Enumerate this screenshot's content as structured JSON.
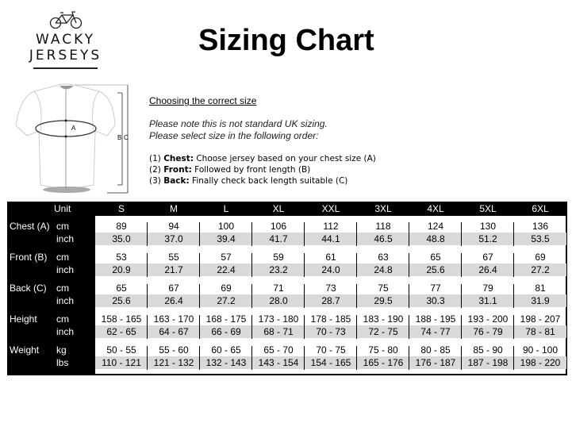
{
  "logo": {
    "line1": "WACKY",
    "line2": "JERSEYS"
  },
  "title": "Sizing Chart",
  "instructions": {
    "heading": "Choosing the correct size",
    "note1": "Please note this is not standard UK sizing.",
    "note2": "Please select size in the following order:",
    "steps": [
      {
        "num": "(1)",
        "bold": "Chest:",
        "text": " Choose jersey based on your chest size (A)"
      },
      {
        "num": "(2)",
        "bold": "Front:",
        "text": " Followed by front length (B)"
      },
      {
        "num": "(3)",
        "bold": "Back:",
        "text": " Finally check back length suitable (C)"
      }
    ]
  },
  "diagram_labels": {
    "a": "A",
    "b": "B",
    "c": "C"
  },
  "table": {
    "unit_header": "Unit",
    "sizes": [
      "S",
      "M",
      "L",
      "XL",
      "XXL",
      "3XL",
      "4XL",
      "5XL",
      "6XL"
    ],
    "groups": [
      {
        "label": "Chest (A)",
        "units": [
          "cm",
          "inch"
        ],
        "rows": [
          [
            "89",
            "94",
            "100",
            "106",
            "112",
            "118",
            "124",
            "130",
            "136"
          ],
          [
            "35.0",
            "37.0",
            "39.4",
            "41.7",
            "44.1",
            "46.5",
            "48.8",
            "51.2",
            "53.5"
          ]
        ]
      },
      {
        "label": "Front (B)",
        "units": [
          "cm",
          "inch"
        ],
        "rows": [
          [
            "53",
            "55",
            "57",
            "59",
            "61",
            "63",
            "65",
            "67",
            "69"
          ],
          [
            "20.9",
            "21.7",
            "22.4",
            "23.2",
            "24.0",
            "24.8",
            "25.6",
            "26.4",
            "27.2"
          ]
        ]
      },
      {
        "label": "Back (C)",
        "units": [
          "cm",
          "inch"
        ],
        "rows": [
          [
            "65",
            "67",
            "69",
            "71",
            "73",
            "75",
            "77",
            "79",
            "81"
          ],
          [
            "25.6",
            "26.4",
            "27.2",
            "28.0",
            "28.7",
            "29.5",
            "30.3",
            "31.1",
            "31.9"
          ]
        ]
      },
      {
        "label": "Height",
        "units": [
          "cm",
          "inch"
        ],
        "rows": [
          [
            "158 - 165",
            "163 - 170",
            "168 - 175",
            "173 - 180",
            "178 - 185",
            "183 - 190",
            "188 - 195",
            "193 - 200",
            "198 - 207"
          ],
          [
            "62 - 65",
            "64 - 67",
            "66 - 69",
            "68 - 71",
            "70 - 73",
            "72 - 75",
            "74 - 77",
            "76 - 79",
            "78 - 81"
          ]
        ]
      },
      {
        "label": "Weight",
        "units": [
          "kg",
          "lbs"
        ],
        "rows": [
          [
            "50 - 55",
            "55 - 60",
            "60 - 65",
            "65 - 70",
            "70 - 75",
            "75 - 80",
            "80 - 85",
            "85 - 90",
            "90 - 100"
          ],
          [
            "110 - 121",
            "121 - 132",
            "132 - 143",
            "143 - 154",
            "154 - 165",
            "165 - 176",
            "176 - 187",
            "187 - 198",
            "198 - 220"
          ]
        ]
      }
    ]
  }
}
